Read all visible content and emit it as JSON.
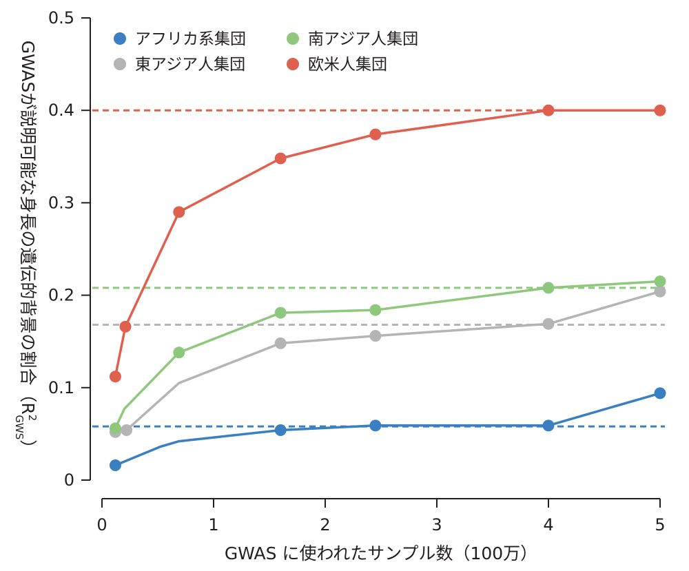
{
  "chart_data": {
    "type": "line",
    "xlabel": "GWAS に使われたサンプル数（100万）",
    "ylabel": "GWASが説明可能な身長の遺伝的背景の割合（R²GWS）",
    "ylabel_main": "GWASが説明可能な身長の遺伝的背景の割合（R",
    "ylabel_sup": "2",
    "ylabel_sub": "GWS",
    "ylabel_close": "）",
    "xlim": [
      0,
      5
    ],
    "ylim": [
      0,
      0.5
    ],
    "xticks": [
      "0",
      "1",
      "2",
      "3",
      "4",
      "5"
    ],
    "yticks": [
      "0",
      "0.1",
      "0.2",
      "0.3",
      "0.4",
      "0.5"
    ],
    "grid": false,
    "legend_position": "top-left",
    "series": [
      {
        "name": "アフリカ系集団",
        "color": "#3a7fc1",
        "reference": 0.058,
        "line": [
          [
            0.12,
            0.016
          ],
          [
            0.52,
            0.036
          ],
          [
            0.69,
            0.042
          ],
          [
            1.6,
            0.054
          ],
          [
            2.45,
            0.059
          ],
          [
            4.0,
            0.059
          ],
          [
            5.0,
            0.094
          ]
        ],
        "points": [
          [
            0.12,
            0.016
          ],
          [
            1.6,
            0.054
          ],
          [
            2.45,
            0.059
          ],
          [
            4.0,
            0.059
          ],
          [
            5.0,
            0.094
          ]
        ]
      },
      {
        "name": "東アジア人集団",
        "color": "#b4b4b4",
        "reference": 0.168,
        "line": [
          [
            0.12,
            0.052
          ],
          [
            0.22,
            0.054
          ],
          [
            0.69,
            0.105
          ],
          [
            1.6,
            0.148
          ],
          [
            2.45,
            0.156
          ],
          [
            4.0,
            0.169
          ],
          [
            5.0,
            0.204
          ]
        ],
        "points": [
          [
            0.12,
            0.052
          ],
          [
            0.22,
            0.054
          ],
          [
            1.6,
            0.148
          ],
          [
            2.45,
            0.156
          ],
          [
            4.0,
            0.169
          ],
          [
            5.0,
            0.204
          ]
        ]
      },
      {
        "name": "南アジア人集団",
        "color": "#8dc87c",
        "reference": 0.208,
        "line": [
          [
            0.12,
            0.056
          ],
          [
            0.2,
            0.077
          ],
          [
            0.69,
            0.138
          ],
          [
            1.6,
            0.181
          ],
          [
            2.45,
            0.184
          ],
          [
            4.0,
            0.208
          ],
          [
            5.0,
            0.215
          ]
        ],
        "points": [
          [
            0.12,
            0.056
          ],
          [
            0.69,
            0.138
          ],
          [
            1.6,
            0.181
          ],
          [
            2.45,
            0.184
          ],
          [
            4.0,
            0.208
          ],
          [
            5.0,
            0.215
          ]
        ]
      },
      {
        "name": "欧米人集団",
        "color": "#e0604f",
        "reference": 0.4,
        "line": [
          [
            0.12,
            0.112
          ],
          [
            0.21,
            0.166
          ],
          [
            0.69,
            0.29
          ],
          [
            1.6,
            0.348
          ],
          [
            2.45,
            0.374
          ],
          [
            4.0,
            0.4
          ],
          [
            5.0,
            0.4
          ]
        ],
        "points": [
          [
            0.12,
            0.112
          ],
          [
            0.21,
            0.166
          ],
          [
            0.69,
            0.29
          ],
          [
            1.6,
            0.348
          ],
          [
            2.45,
            0.374
          ],
          [
            4.0,
            0.4
          ],
          [
            5.0,
            0.4
          ]
        ]
      }
    ]
  }
}
